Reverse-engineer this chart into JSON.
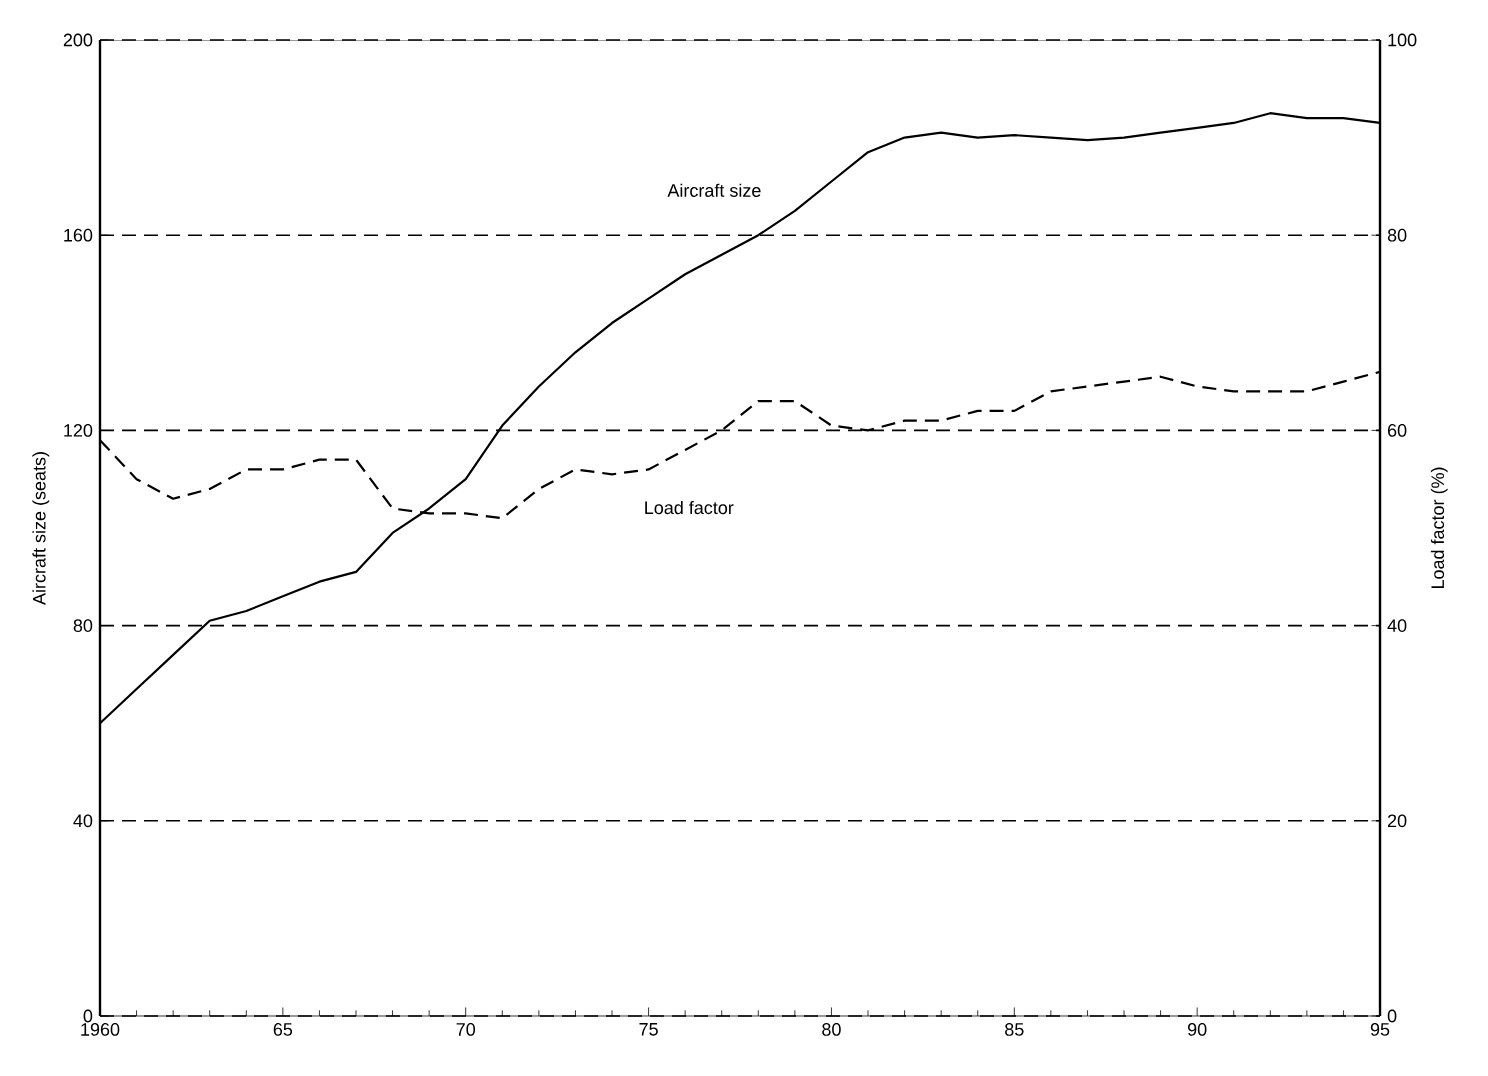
{
  "chart_data": {
    "type": "line",
    "xlabel": null,
    "ylabel": "Aircraft size (seats)",
    "y2label": "Load factor (%)",
    "x": [
      1960,
      1961,
      1962,
      1963,
      1964,
      1965,
      1966,
      1967,
      1968,
      1969,
      1970,
      1971,
      1972,
      1973,
      1974,
      1975,
      1976,
      1977,
      1978,
      1979,
      1980,
      1981,
      1982,
      1983,
      1984,
      1985,
      1986,
      1987,
      1988,
      1989,
      1990,
      1991,
      1992,
      1993,
      1994,
      1995
    ],
    "series": [
      {
        "name": "Aircraft size",
        "color": "#000000",
        "line_style": "solid",
        "values": [
          60,
          67,
          74,
          81,
          83,
          86,
          89,
          91,
          99,
          104,
          110,
          121,
          129,
          136,
          142,
          147,
          152,
          156,
          160,
          165,
          171,
          177,
          180,
          181,
          180,
          180.5,
          180,
          179.5,
          180,
          181,
          182,
          183,
          185,
          184,
          184,
          183
        ]
      },
      {
        "name": "Load factor",
        "color": "#000000",
        "line_style": "dashed",
        "axis": "y2",
        "values": [
          59,
          55,
          53,
          54,
          56,
          56,
          57,
          57,
          52,
          51.5,
          51.5,
          51,
          54,
          56,
          55.5,
          56,
          58,
          60,
          63,
          63,
          60.5,
          60,
          61,
          61,
          62,
          62,
          64,
          64.5,
          65,
          65.5,
          64.5,
          64,
          64,
          64,
          65,
          66
        ]
      }
    ],
    "xlim": [
      1960,
      1995
    ],
    "xticks": [
      1960,
      {
        "value": 1965,
        "label": "65"
      },
      {
        "value": 1970,
        "label": "70"
      },
      {
        "value": 1975,
        "label": "75"
      },
      {
        "value": 1980,
        "label": "80"
      },
      {
        "value": 1985,
        "label": "85"
      },
      {
        "value": 1990,
        "label": "90"
      },
      {
        "value": 1995,
        "label": "95"
      }
    ],
    "ylim": [
      0,
      200
    ],
    "yticks": [
      0,
      40,
      80,
      120,
      160,
      200
    ],
    "y2lim": [
      0,
      100
    ],
    "y2ticks": [
      0,
      20,
      40,
      60,
      80,
      100
    ],
    "grid": "y"
  }
}
